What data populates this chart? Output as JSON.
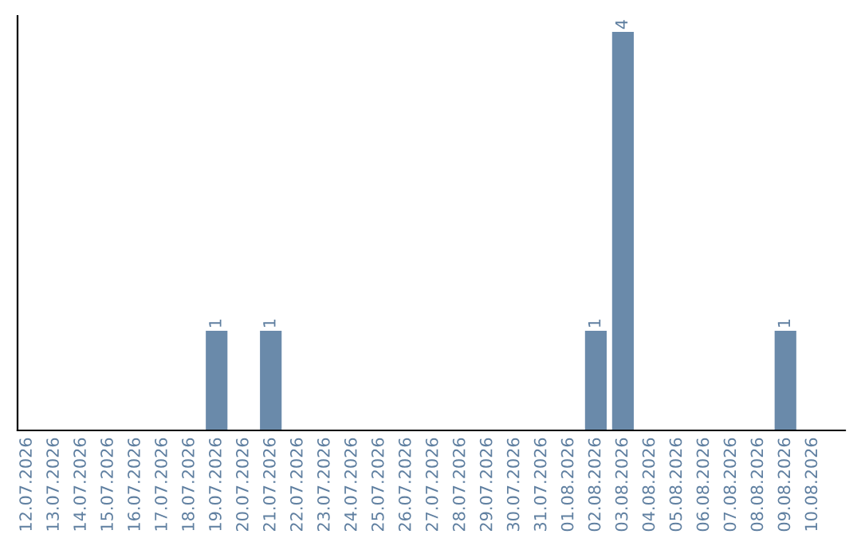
{
  "chart_data": {
    "type": "bar",
    "categories": [
      "12.07.2026",
      "13.07.2026",
      "14.07.2026",
      "15.07.2026",
      "16.07.2026",
      "17.07.2026",
      "18.07.2026",
      "19.07.2026",
      "20.07.2026",
      "21.07.2026",
      "22.07.2026",
      "23.07.2026",
      "24.07.2026",
      "25.07.2026",
      "26.07.2026",
      "27.07.2026",
      "28.07.2026",
      "29.07.2026",
      "30.07.2026",
      "31.07.2026",
      "01.08.2026",
      "02.08.2026",
      "03.08.2026",
      "04.08.2026",
      "05.08.2026",
      "06.08.2026",
      "07.08.2026",
      "08.08.2026",
      "09.08.2026",
      "10.08.2026"
    ],
    "values": [
      0,
      0,
      0,
      0,
      0,
      0,
      0,
      1,
      0,
      1,
      0,
      0,
      0,
      0,
      0,
      0,
      0,
      0,
      0,
      0,
      0,
      1,
      4,
      0,
      0,
      0,
      0,
      0,
      1,
      0
    ],
    "color": "#6a8aaa",
    "value_labels": [
      null,
      null,
      null,
      null,
      null,
      null,
      null,
      "1",
      null,
      "1",
      null,
      null,
      null,
      null,
      null,
      null,
      null,
      null,
      null,
      null,
      null,
      "1",
      "4",
      null,
      null,
      null,
      null,
      null,
      "1",
      null
    ],
    "tick_labels": "x",
    "grid": false
  }
}
